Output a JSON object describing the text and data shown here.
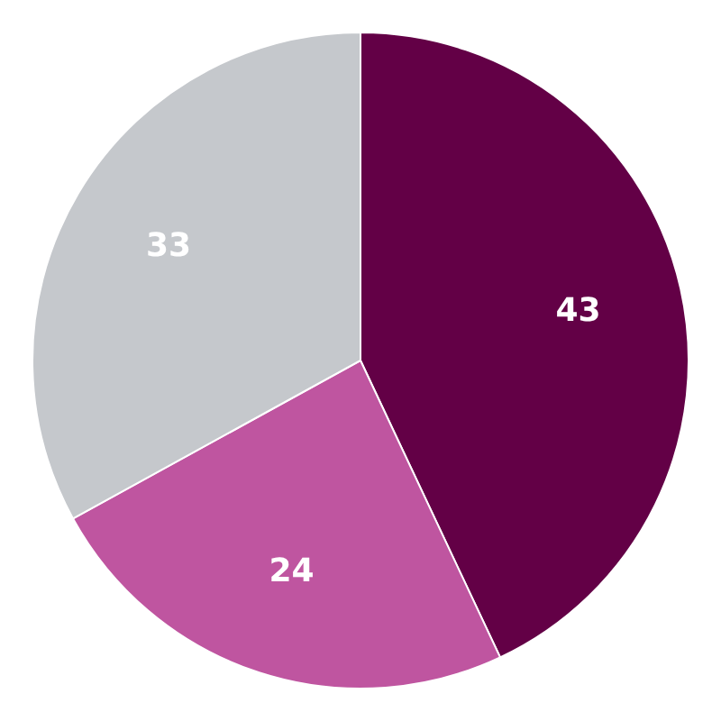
{
  "chart_data": {
    "type": "pie",
    "categories": [
      null,
      null,
      null
    ],
    "values": [
      43,
      24,
      33
    ],
    "colors": [
      "#630046",
      "#bf55a0",
      "#c5c8cc"
    ],
    "data_labels": true,
    "legend": false
  }
}
